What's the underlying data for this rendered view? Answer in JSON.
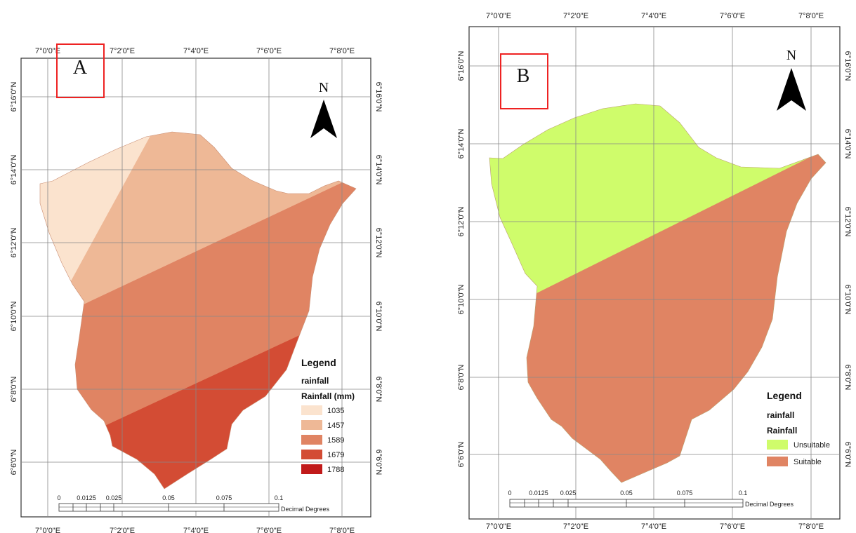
{
  "panel_a": {
    "label": "A",
    "north_label": "N",
    "top_lon_labels": [
      "7°0'0\"E",
      "7°2'0\"E",
      "7°4'0\"E",
      "7°6'0\"E",
      "7°8'0\"E"
    ],
    "bottom_lon_labels": [
      "7°0'0\"E",
      "7°2'0\"E",
      "7°4'0\"E",
      "7°6'0\"E",
      "7°8'0\"E"
    ],
    "lat_labels": [
      "6°16'0\"N",
      "6°14'0\"N",
      "6°12'0\"N",
      "6°10'0\"N",
      "6°8'0\"N",
      "6°6'0\"N"
    ],
    "legend": {
      "title": "Legend",
      "layer": "rainfall",
      "field": "Rainfall (mm)",
      "items": [
        {
          "label": "1035",
          "color": "#FBE3CE"
        },
        {
          "label": "1457",
          "color": "#EEB896"
        },
        {
          "label": "1589",
          "color": "#E08463"
        },
        {
          "label": "1679",
          "color": "#D34C34"
        },
        {
          "label": "1788",
          "color": "#C11A1A"
        }
      ]
    },
    "scale_bar": {
      "ticks": [
        "0",
        "0.0125",
        "0.025",
        "0.05",
        "0.075",
        "0.1"
      ],
      "unit": "Decimal Degrees"
    }
  },
  "panel_b": {
    "label": "B",
    "north_label": "N",
    "top_lon_labels": [
      "7°0'0\"E",
      "7°2'0\"E",
      "7°4'0\"E",
      "7°6'0\"E",
      "7°8'0\"E"
    ],
    "bottom_lon_labels": [
      "7°0'0\"E",
      "7°2'0\"E",
      "7°4'0\"E",
      "7°6'0\"E",
      "7°8'0\"E"
    ],
    "lat_labels": [
      "6°16'0\"N",
      "6°14'0\"N",
      "6°12'0\"N",
      "6°10'0\"N",
      "6°8'0\"N",
      "6°6'0\"N"
    ],
    "legend": {
      "title": "Legend",
      "layer": "rainfall",
      "field": "Rainfall",
      "items": [
        {
          "label": "Unsuitable",
          "color": "#CFFC6B"
        },
        {
          "label": "Suitable",
          "color": "#E08463"
        }
      ]
    },
    "scale_bar": {
      "ticks": [
        "0",
        "0.0125",
        "0.025",
        "0.05",
        "0.075",
        "0.1"
      ],
      "unit": "Decimal Degrees"
    }
  }
}
